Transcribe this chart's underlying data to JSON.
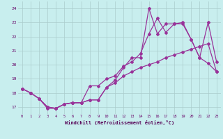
{
  "xlabel": "Windchill (Refroidissement éolien,°C)",
  "background_color": "#c8eeee",
  "grid_color": "#aacccc",
  "line_color": "#993399",
  "xlim": [
    -0.5,
    23.5
  ],
  "ylim": [
    16.5,
    24.5
  ],
  "xticks": [
    0,
    1,
    2,
    3,
    4,
    5,
    6,
    7,
    8,
    9,
    10,
    11,
    12,
    13,
    14,
    15,
    16,
    17,
    18,
    19,
    20,
    21,
    22,
    23
  ],
  "yticks": [
    17,
    18,
    19,
    20,
    21,
    22,
    23,
    24
  ],
  "line1_x": [
    0,
    1,
    2,
    3,
    4,
    5,
    6,
    7,
    8,
    9,
    10,
    11,
    12,
    13,
    14,
    15,
    16,
    17,
    18,
    19,
    20,
    21,
    22,
    23
  ],
  "line1_y": [
    18.3,
    18.0,
    17.6,
    16.9,
    16.9,
    17.2,
    17.3,
    17.3,
    17.5,
    17.5,
    18.4,
    18.9,
    19.8,
    20.5,
    20.5,
    24.0,
    22.2,
    22.9,
    22.9,
    22.9,
    21.8,
    20.5,
    20.1,
    19.5
  ],
  "line2_x": [
    0,
    1,
    2,
    3,
    4,
    5,
    6,
    7,
    8,
    9,
    10,
    11,
    12,
    13,
    14,
    15,
    16,
    17,
    18,
    19,
    20,
    21,
    22,
    23
  ],
  "line2_y": [
    18.3,
    18.0,
    17.6,
    17.0,
    16.9,
    17.2,
    17.3,
    17.3,
    18.5,
    18.5,
    19.0,
    19.2,
    19.9,
    20.2,
    20.8,
    22.2,
    23.3,
    22.3,
    22.9,
    23.0,
    21.8,
    20.5,
    23.0,
    20.2
  ],
  "line3_x": [
    0,
    1,
    2,
    3,
    4,
    5,
    6,
    7,
    8,
    9,
    10,
    11,
    12,
    13,
    14,
    15,
    16,
    17,
    18,
    19,
    20,
    21,
    22,
    23
  ],
  "line3_y": [
    18.3,
    18.0,
    17.6,
    17.0,
    16.9,
    17.2,
    17.3,
    17.3,
    17.5,
    17.5,
    18.4,
    18.7,
    19.2,
    19.5,
    19.8,
    20.0,
    20.2,
    20.5,
    20.7,
    20.9,
    21.1,
    21.3,
    21.5,
    19.5
  ]
}
